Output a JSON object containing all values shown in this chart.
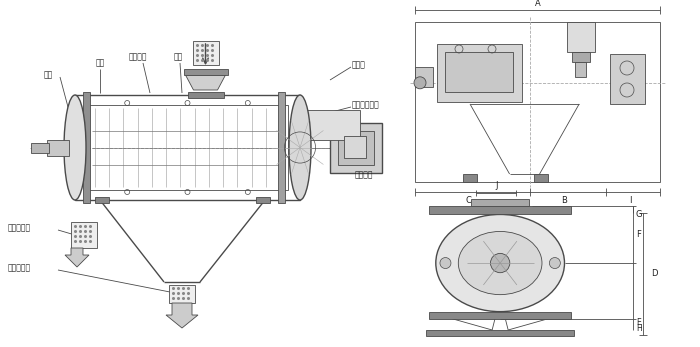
{
  "bg_color": "#ffffff",
  "line_color": "#4a4a4a",
  "labels": {
    "fenglun": "风轮",
    "fenglun_yepian": "风轮叶片",
    "wangjia": "网架",
    "zhuzhoou": "主轴",
    "jinliakou": "进料口",
    "luoxuan": "螺旋输送系统",
    "culiao": "粗料排出口",
    "xiliao": "细料排出口",
    "qudong": "驱动电机",
    "A": "A",
    "B": "B",
    "C": "C",
    "I": "I",
    "J": "J",
    "D": "D",
    "E": "E",
    "F": "F",
    "G": "G",
    "H": "H"
  },
  "figsize": [
    7.0,
    3.47
  ],
  "dpi": 100
}
